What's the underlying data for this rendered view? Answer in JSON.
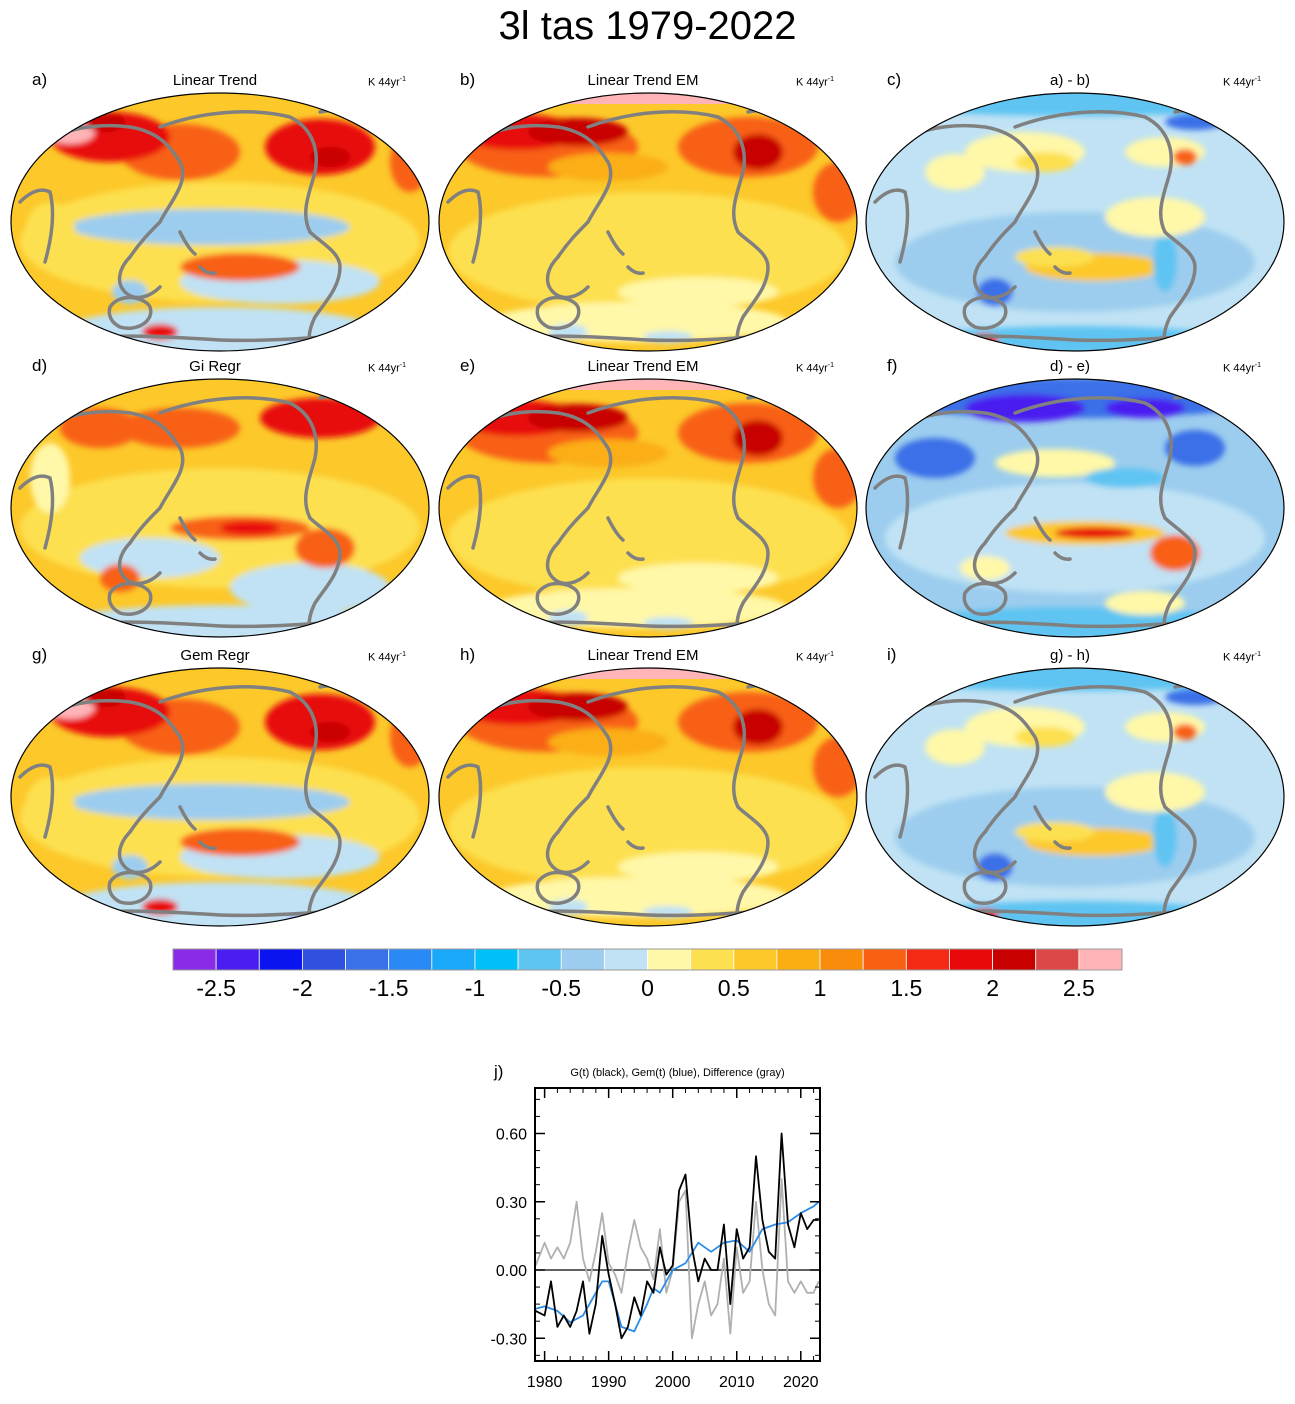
{
  "title": "3l tas 1979-2022",
  "units_base": "K 44yr",
  "units_sup": "-1",
  "panels": [
    {
      "letter": "a)",
      "title": "Linear Trend"
    },
    {
      "letter": "b)",
      "title": "Linear Trend EM"
    },
    {
      "letter": "c)",
      "title": "a) - b)"
    },
    {
      "letter": "d)",
      "title": "Gi Regr"
    },
    {
      "letter": "e)",
      "title": "Linear Trend EM"
    },
    {
      "letter": "f)",
      "title": "d) - e)"
    },
    {
      "letter": "g)",
      "title": "Gem Regr"
    },
    {
      "letter": "h)",
      "title": "Linear Trend EM"
    },
    {
      "letter": "i)",
      "title": "g) - h)"
    }
  ],
  "colorbar": {
    "colors": [
      "#8a2be8",
      "#4a1ef0",
      "#0a14f0",
      "#3050e0",
      "#3a70e8",
      "#2a8af5",
      "#1aa8f8",
      "#00c0f8",
      "#5ec4f2",
      "#9ccdee",
      "#c0e2f4",
      "#fff8a8",
      "#fde050",
      "#fcc82a",
      "#fbae12",
      "#f98c0a",
      "#f86014",
      "#f52a14",
      "#e80a0a",
      "#c80000",
      "#dc4848",
      "#ffb4b8"
    ],
    "tick_labels": [
      "-2.5",
      "-2",
      "-1.5",
      "-1",
      "-0.5",
      "0",
      "0.5",
      "1",
      "1.5",
      "2",
      "2.5"
    ],
    "tick_values": [
      -2.5,
      -2,
      -1.5,
      -1,
      -0.5,
      0,
      0.5,
      1,
      1.5,
      2,
      2.5
    ]
  },
  "map_colors": {
    "coast": "#808080",
    "weak_neg": "#c0e2f4",
    "neg": "#9ccdee",
    "mid_neg": "#5ec4f2",
    "strong_neg": "#3a70e8",
    "vstrong_neg": "#4a1ef0",
    "zero": "#fff8a8",
    "weak_pos": "#fde050",
    "pos": "#fcc82a",
    "mid_pos": "#fbae12",
    "strong_pos": "#f86014",
    "vstrong_pos": "#e80a0a",
    "max_pos": "#c80000",
    "top_pos": "#ffb4b8"
  },
  "timeseries": {
    "letter": "j)",
    "title": "G(t)  (black), Gem(t) (blue), Difference (gray)",
    "chart_data": {
      "type": "line",
      "xlim": [
        1978.5,
        2023
      ],
      "ylim": [
        -0.4,
        0.8
      ],
      "x_ticks": [
        1980,
        1990,
        2000,
        2010,
        2020
      ],
      "x_tick_labels": [
        "1980",
        "1990",
        "2000",
        "2010",
        "2020"
      ],
      "y_ticks": [
        -0.3,
        0,
        0.3,
        0.6
      ],
      "y_tick_labels": [
        "-0.30",
        "0.00",
        "0.30",
        "0.60"
      ],
      "zero_line": true,
      "series": [
        {
          "color": "#000000",
          "x": [
            1978.6,
            1980,
            1981,
            1982,
            1983,
            1984,
            1985,
            1986,
            1987,
            1988,
            1989,
            1990,
            1991,
            1992,
            1993,
            1994,
            1995,
            1996,
            1997,
            1998,
            1999,
            2000,
            2001,
            2002,
            2003,
            2004,
            2005,
            2006,
            2007,
            2008,
            2009,
            2010,
            2011,
            2012,
            2013,
            2014,
            2015,
            2016,
            2017,
            2018,
            2019,
            2020,
            2021,
            2022,
            2022.8
          ],
          "y": [
            -0.18,
            -0.2,
            -0.05,
            -0.25,
            -0.2,
            -0.25,
            -0.18,
            -0.05,
            -0.28,
            -0.15,
            0.15,
            -0.02,
            -0.15,
            -0.3,
            -0.25,
            -0.12,
            -0.2,
            -0.05,
            -0.1,
            0.1,
            -0.02,
            0.02,
            0.35,
            0.42,
            0.1,
            -0.05,
            0.05,
            0.0,
            0.0,
            0.2,
            -0.15,
            0.18,
            0.05,
            0.1,
            0.5,
            0.22,
            0.08,
            0.05,
            0.6,
            0.2,
            0.1,
            0.25,
            0.18,
            0.22,
            0.22
          ]
        },
        {
          "color": "#2a8ce8",
          "x": [
            1978.6,
            1980,
            1982,
            1984,
            1986,
            1988,
            1989,
            1990,
            1992,
            1994,
            1996,
            1997,
            1998,
            2000,
            2002,
            2004,
            2006,
            2008,
            2010,
            2012,
            2014,
            2016,
            2018,
            2020,
            2022,
            2022.8
          ],
          "y": [
            -0.17,
            -0.16,
            -0.18,
            -0.23,
            -0.2,
            -0.1,
            -0.05,
            -0.05,
            -0.25,
            -0.27,
            -0.15,
            -0.08,
            -0.1,
            0.0,
            0.03,
            0.12,
            0.08,
            0.12,
            0.13,
            0.08,
            0.18,
            0.2,
            0.21,
            0.25,
            0.28,
            0.3
          ]
        },
        {
          "color": "#b0b0b0",
          "x": [
            1978.6,
            1980,
            1981,
            1982,
            1983,
            1984,
            1985,
            1986,
            1987,
            1988,
            1989,
            1990,
            1991,
            1992,
            1993,
            1994,
            1995,
            1996,
            1997,
            1998,
            1999,
            2000,
            2001,
            2002,
            2003,
            2004,
            2005,
            2006,
            2007,
            2008,
            2009,
            2010,
            2011,
            2012,
            2013,
            2014,
            2015,
            2016,
            2017,
            2018,
            2019,
            2020,
            2021,
            2022,
            2022.8
          ],
          "y": [
            0.02,
            0.12,
            0.05,
            0.1,
            0.05,
            0.12,
            0.3,
            0.05,
            -0.05,
            0.08,
            0.25,
            0.03,
            -0.02,
            -0.1,
            0.08,
            0.22,
            0.1,
            0.05,
            -0.04,
            0.18,
            -0.1,
            0.0,
            0.3,
            0.35,
            -0.3,
            -0.15,
            -0.05,
            -0.2,
            -0.15,
            0.05,
            -0.28,
            0.1,
            -0.1,
            -0.05,
            0.3,
            0.0,
            -0.15,
            -0.2,
            0.4,
            -0.05,
            -0.1,
            -0.05,
            -0.1,
            -0.1,
            -0.05
          ]
        }
      ]
    }
  }
}
